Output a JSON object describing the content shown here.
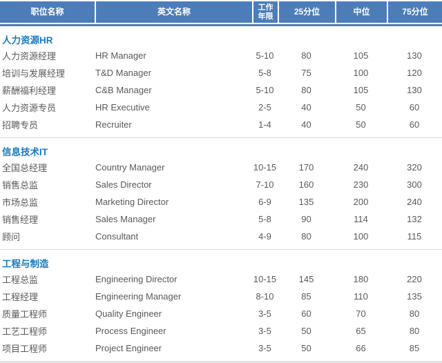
{
  "table": {
    "colors": {
      "header_bg": "#4d7db9",
      "section_title_color": "#1779c2",
      "body_text_color": "#595959",
      "separator_color": "#d8d8d8"
    },
    "columns": [
      {
        "key": "position",
        "label": "职位名称"
      },
      {
        "key": "english_name",
        "label": "英文名称"
      },
      {
        "key": "work_years",
        "label": "工作年限",
        "line1": "工作",
        "line2": "年限"
      },
      {
        "key": "p25",
        "label": "25分位"
      },
      {
        "key": "median",
        "label": "中位"
      },
      {
        "key": "p75",
        "label": "75分位"
      }
    ],
    "sections": [
      {
        "title": "人力资源HR",
        "rows": [
          [
            "人力资源经理",
            "HR Manager",
            "5-10",
            "80",
            "105",
            "130"
          ],
          [
            "培训与发展经理",
            "T&D Manager",
            "5-8",
            "75",
            "100",
            "120"
          ],
          [
            "薪酬福利经理",
            "C&B Manager",
            "5-10",
            "80",
            "105",
            "130"
          ],
          [
            "人力资源专员",
            "HR Executive",
            "2-5",
            "40",
            "50",
            "60"
          ],
          [
            "招聘专员",
            "Recruiter",
            "1-4",
            "40",
            "50",
            "60"
          ]
        ]
      },
      {
        "title": "信息技术IT",
        "rows": [
          [
            "全国总经理",
            "Country Manager",
            "10-15",
            "170",
            "240",
            "320"
          ],
          [
            "销售总监",
            "Sales Director",
            "7-10",
            "160",
            "230",
            "300"
          ],
          [
            "市场总监",
            "Marketing Director",
            "6-9",
            "135",
            "200",
            "240"
          ],
          [
            "销售经理",
            "Sales Manager",
            "5-8",
            "90",
            "114",
            "132"
          ],
          [
            "顾问",
            "Consultant",
            "4-9",
            "80",
            "100",
            "115"
          ]
        ]
      },
      {
        "title": "工程与制造",
        "rows": [
          [
            "工程总监",
            "Engineering Director",
            "10-15",
            "145",
            "180",
            "220"
          ],
          [
            "工程经理",
            "Engineering Manager",
            "8-10",
            "85",
            "110",
            "135"
          ],
          [
            "质量工程师",
            "Quality Engineer",
            "3-5",
            "60",
            "70",
            "80"
          ],
          [
            "工艺工程师",
            "Process Engineer",
            "3-5",
            "50",
            "65",
            "80"
          ],
          [
            "项目工程师",
            "Project Engineer",
            "3-5",
            "50",
            "66",
            "85"
          ]
        ]
      }
    ]
  }
}
